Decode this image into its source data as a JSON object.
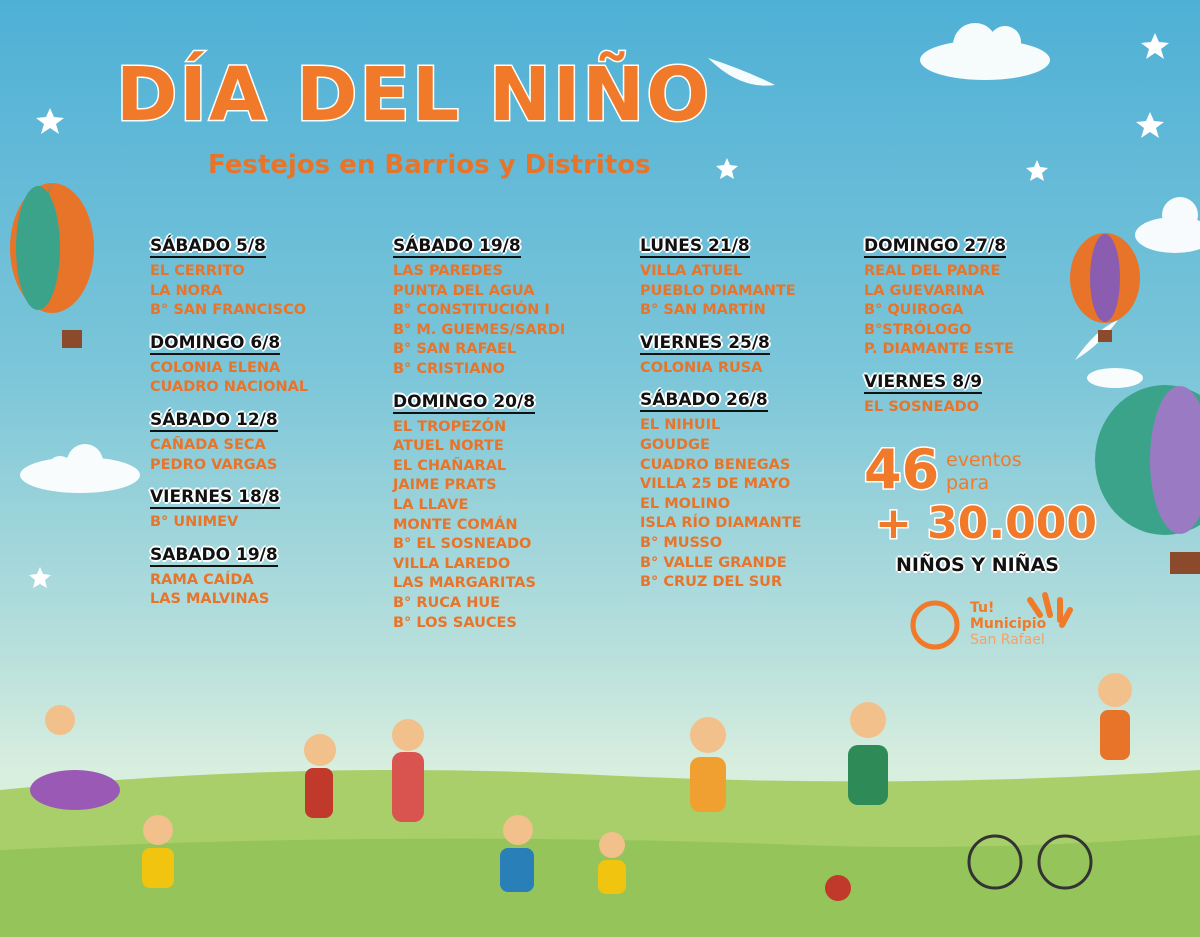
{
  "header": {
    "title": "DÍA DEL NIÑO",
    "subtitle": "Festejos en Barrios y Distritos"
  },
  "columns": [
    {
      "sections": [
        {
          "date": "SÁBADO 5/8",
          "places": [
            "EL CERRITO",
            "LA NORA",
            "B° SAN FRANCISCO"
          ]
        },
        {
          "date": "DOMINGO 6/8",
          "places": [
            "COLONIA ELENA",
            "CUADRO NACIONAL"
          ]
        },
        {
          "date": "SÁBADO 12/8",
          "places": [
            "CAÑADA SECA",
            "PEDRO VARGAS"
          ]
        },
        {
          "date": "VIERNES 18/8",
          "places": [
            "B° UNIMEV"
          ]
        },
        {
          "date": "SABADO 19/8",
          "places": [
            "RAMA CAÍDA",
            "LAS MALVINAS"
          ]
        }
      ]
    },
    {
      "sections": [
        {
          "date": "SÁBADO 19/8",
          "places": [
            "LAS PAREDES",
            "PUNTA DEL AGUA",
            "B° CONSTITUCIÓN I",
            "B° M. GUEMES/SARDI",
            "B° SAN RAFAEL",
            "B° CRISTIANO"
          ]
        },
        {
          "date": "DOMINGO 20/8",
          "places": [
            "EL TROPEZÓN",
            "ATUEL NORTE",
            "EL CHAÑARAL",
            "JAIME PRATS",
            "LA LLAVE",
            "MONTE COMÁN",
            "B° EL SOSNEADO",
            "VILLA LAREDO",
            "LAS MARGARITAS",
            "B° RUCA HUE",
            "B° LOS SAUCES"
          ]
        }
      ]
    },
    {
      "sections": [
        {
          "date": "LUNES 21/8",
          "places": [
            "VILLA ATUEL",
            "PUEBLO DIAMANTE",
            "B° SAN MARTÍN"
          ]
        },
        {
          "date": "VIERNES 25/8",
          "places": [
            "COLONIA RUSA"
          ]
        },
        {
          "date": "SÁBADO 26/8",
          "places": [
            "EL NIHUIL",
            "GOUDGE",
            "CUADRO BENEGAS",
            "VILLA 25 DE MAYO",
            "EL MOLINO",
            "ISLA RÍO DIAMANTE",
            "B° MUSSO",
            "B° VALLE GRANDE",
            "B° CRUZ DEL SUR"
          ]
        }
      ]
    },
    {
      "sections": [
        {
          "date": "DOMINGO 27/8",
          "places": [
            "REAL DEL PADRE",
            "LA GUEVARINA",
            "B° QUIROGA",
            "B°STRÓLOGO",
            "P. DIAMANTE ESTE"
          ]
        },
        {
          "date": "VIERNES 8/9",
          "places": [
            "EL SOSNEADO"
          ]
        }
      ]
    }
  ],
  "stats": {
    "count": "46",
    "events": "eventos",
    "for": "para",
    "total": "+ 30.000",
    "audience": "NIÑOS Y NIÑAS"
  },
  "logo": {
    "line1": "Tu!",
    "line2": "Municipio",
    "line3": "San Rafael"
  }
}
